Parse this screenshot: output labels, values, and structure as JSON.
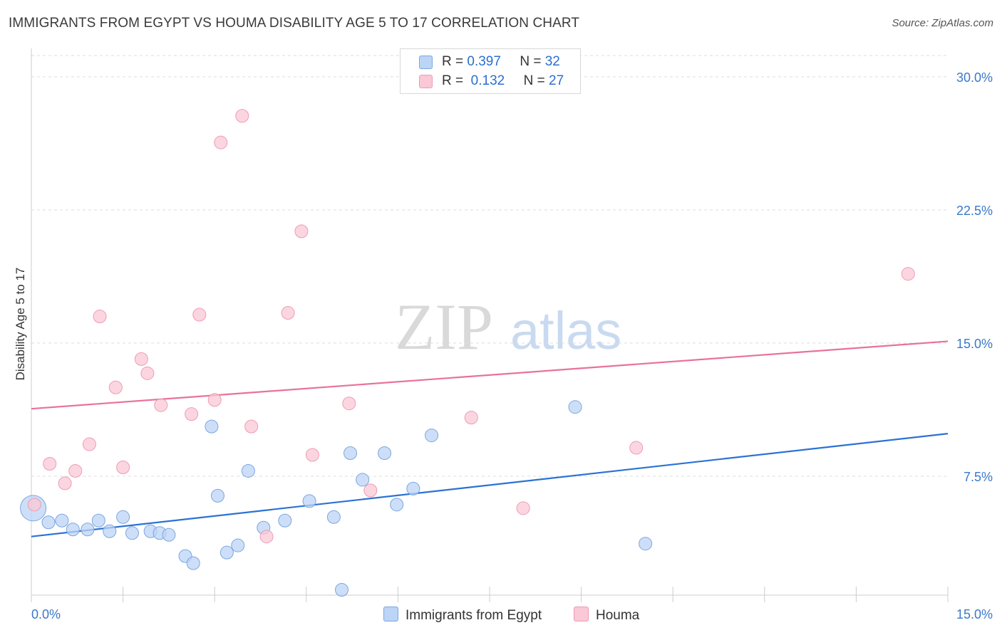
{
  "header": {
    "title": "IMMIGRANTS FROM EGYPT VS HOUMA DISABILITY AGE 5 TO 17 CORRELATION CHART",
    "source": "Source: ZipAtlas.com"
  },
  "watermark": {
    "part1": "ZIP",
    "part2": "atlas"
  },
  "legend": {
    "rows": [
      {
        "r_label": "R =",
        "r_value": "0.397",
        "n_label": "N =",
        "n_value": "32"
      },
      {
        "r_label": "R =",
        "r_value": "0.132",
        "n_label": "N =",
        "n_value": "27"
      }
    ]
  },
  "colors": {
    "blue_fill": "#bcd4f5",
    "blue_stroke": "#7aa6e0",
    "blue_line": "#2a72d4",
    "pink_fill": "#fac8d6",
    "pink_stroke": "#ee9bb3",
    "pink_line": "#e8729a",
    "axis_text": "#3a78c9",
    "grid": "#dddddd"
  },
  "chart_data": {
    "type": "scatter",
    "title": "IMMIGRANTS FROM EGYPT VS HOUMA DISABILITY AGE 5 TO 17 CORRELATION CHART",
    "xlabel": "",
    "ylabel": "Disability Age 5 to 17",
    "xlim": [
      0,
      15
    ],
    "ylim": [
      0.8,
      31.2
    ],
    "x_tick_labels": [
      "0.0%",
      "15.0%"
    ],
    "y_ticks": [
      7.5,
      15.0,
      22.5,
      30.0
    ],
    "y_tick_labels": [
      "7.5%",
      "15.0%",
      "22.5%",
      "30.0%"
    ],
    "grid": "horizontal dashed",
    "legend_position": "top-center",
    "series": [
      {
        "name": "Immigrants from Egypt",
        "color": "#bcd4f5",
        "trend": {
          "x": [
            0,
            15
          ],
          "y": [
            4.1,
            9.9
          ]
        },
        "points": [
          {
            "x": 0.03,
            "y": 5.7,
            "big": true
          },
          {
            "x": 0.28,
            "y": 4.9
          },
          {
            "x": 0.5,
            "y": 5.0
          },
          {
            "x": 0.68,
            "y": 4.5
          },
          {
            "x": 0.92,
            "y": 4.5
          },
          {
            "x": 1.1,
            "y": 5.0
          },
          {
            "x": 1.28,
            "y": 4.4
          },
          {
            "x": 1.5,
            "y": 5.2
          },
          {
            "x": 1.65,
            "y": 4.3
          },
          {
            "x": 1.95,
            "y": 4.4
          },
          {
            "x": 2.1,
            "y": 4.3
          },
          {
            "x": 2.25,
            "y": 4.2
          },
          {
            "x": 2.52,
            "y": 3.0
          },
          {
            "x": 2.65,
            "y": 2.6
          },
          {
            "x": 2.95,
            "y": 10.3
          },
          {
            "x": 3.05,
            "y": 6.4
          },
          {
            "x": 3.2,
            "y": 3.2
          },
          {
            "x": 3.38,
            "y": 3.6
          },
          {
            "x": 3.55,
            "y": 7.8
          },
          {
            "x": 3.8,
            "y": 4.6
          },
          {
            "x": 4.15,
            "y": 5.0
          },
          {
            "x": 4.55,
            "y": 6.1
          },
          {
            "x": 4.95,
            "y": 5.2
          },
          {
            "x": 5.08,
            "y": 1.1
          },
          {
            "x": 5.22,
            "y": 8.8
          },
          {
            "x": 5.42,
            "y": 7.3
          },
          {
            "x": 5.78,
            "y": 8.8
          },
          {
            "x": 5.98,
            "y": 5.9
          },
          {
            "x": 6.25,
            "y": 6.8
          },
          {
            "x": 6.55,
            "y": 9.8
          },
          {
            "x": 8.9,
            "y": 11.4
          },
          {
            "x": 10.05,
            "y": 3.7
          }
        ]
      },
      {
        "name": "Houma",
        "color": "#fac8d6",
        "trend": {
          "x": [
            0,
            15
          ],
          "y": [
            11.3,
            15.1
          ]
        },
        "points": [
          {
            "x": 0.05,
            "y": 5.9
          },
          {
            "x": 0.3,
            "y": 8.2
          },
          {
            "x": 0.55,
            "y": 7.1
          },
          {
            "x": 0.72,
            "y": 7.8
          },
          {
            "x": 0.95,
            "y": 9.3
          },
          {
            "x": 1.12,
            "y": 16.5
          },
          {
            "x": 1.38,
            "y": 12.5
          },
          {
            "x": 1.5,
            "y": 8.0
          },
          {
            "x": 1.8,
            "y": 14.1
          },
          {
            "x": 1.9,
            "y": 13.3
          },
          {
            "x": 2.12,
            "y": 11.5
          },
          {
            "x": 2.62,
            "y": 11.0
          },
          {
            "x": 2.75,
            "y": 16.6
          },
          {
            "x": 3.0,
            "y": 11.8
          },
          {
            "x": 3.1,
            "y": 26.3
          },
          {
            "x": 3.45,
            "y": 27.8
          },
          {
            "x": 3.6,
            "y": 10.3
          },
          {
            "x": 3.85,
            "y": 4.1
          },
          {
            "x": 4.2,
            "y": 16.7
          },
          {
            "x": 4.42,
            "y": 21.3
          },
          {
            "x": 4.6,
            "y": 8.7
          },
          {
            "x": 5.2,
            "y": 11.6
          },
          {
            "x": 5.55,
            "y": 6.7
          },
          {
            "x": 7.2,
            "y": 10.8
          },
          {
            "x": 8.05,
            "y": 5.7
          },
          {
            "x": 9.9,
            "y": 9.1
          },
          {
            "x": 14.35,
            "y": 18.9
          }
        ]
      }
    ]
  }
}
